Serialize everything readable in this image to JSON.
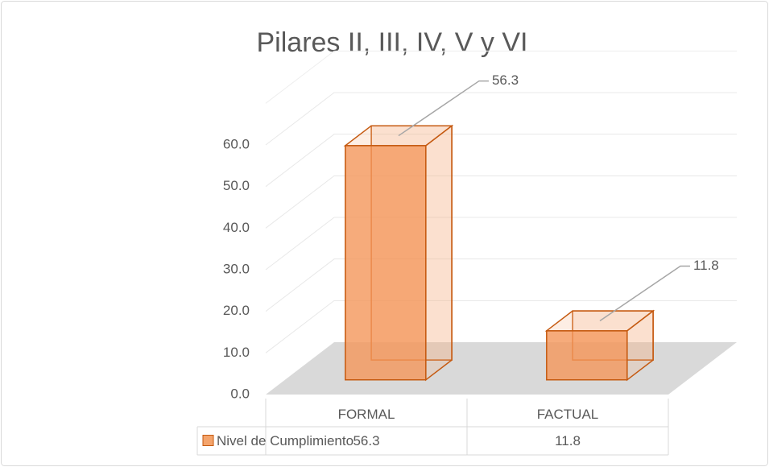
{
  "chart_data": {
    "type": "bar3d",
    "title": "Pilares II, III, IV, V y VI",
    "categories": [
      "FORMAL",
      "FACTUAL"
    ],
    "series": [
      {
        "name": "Nivel de Cumplimiento",
        "color": "#f4a46c",
        "values": [
          56.3,
          11.8
        ]
      }
    ],
    "ylim": [
      0,
      70
    ],
    "yticks": [
      {
        "value": 0,
        "label": "0.0"
      },
      {
        "value": 10,
        "label": "10.0"
      },
      {
        "value": 20,
        "label": "20.0"
      },
      {
        "value": 30,
        "label": "30.0"
      },
      {
        "value": 40,
        "label": "40.0"
      },
      {
        "value": 50,
        "label": "50.0"
      },
      {
        "value": 60,
        "label": "60.0"
      }
    ],
    "grid": true,
    "data_table": true
  }
}
